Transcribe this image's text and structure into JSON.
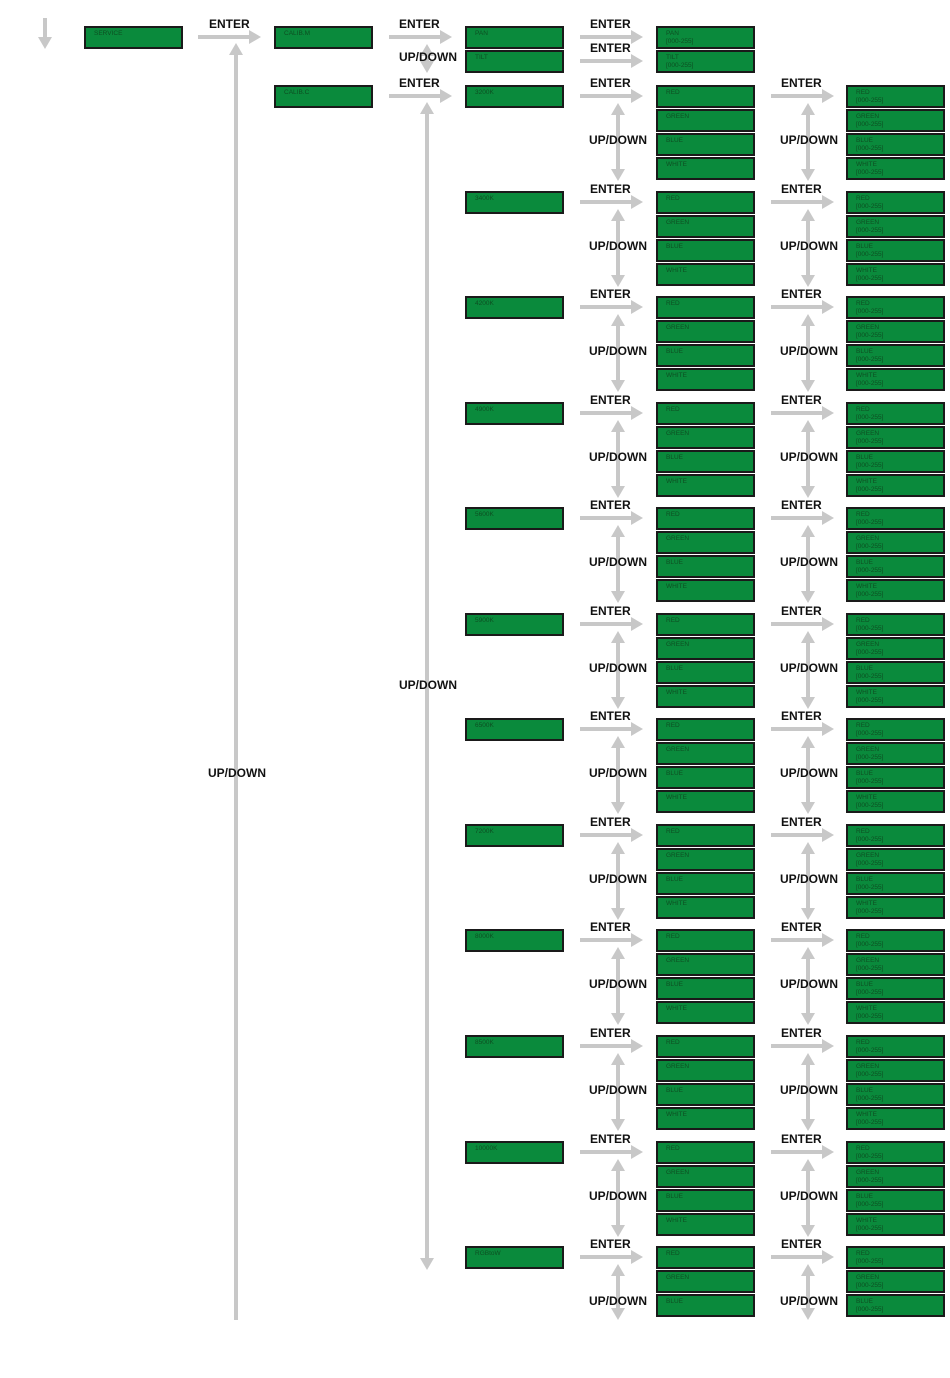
{
  "labels": {
    "enter": "ENTER",
    "updown": "UP/DOWN"
  },
  "colors": {
    "box_fill": "#0a8a3c",
    "box_border": "#1a1a1a",
    "box_text": "#0d4f22",
    "arrow": "#c8c8c8"
  },
  "menu": {
    "root": "SERVICE",
    "items": [
      {
        "label": "CALIB.M",
        "children": [
          {
            "label": "PAN",
            "value": "PAN\n[000-255]"
          },
          {
            "label": "TILT",
            "value": "TILT\n[000-255]"
          }
        ]
      },
      {
        "label": "CALIB.C",
        "temperatures": [
          {
            "label": "3200K",
            "channels": [
              "RED",
              "GREEN",
              "BLUE",
              "WHITE"
            ]
          },
          {
            "label": "3400K",
            "channels": [
              "RED",
              "GREEN",
              "BLUE",
              "WHITE"
            ]
          },
          {
            "label": "4200K",
            "channels": [
              "RED",
              "GREEN",
              "BLUE",
              "WHITE"
            ]
          },
          {
            "label": "4900K",
            "channels": [
              "RED",
              "GREEN",
              "BLUE",
              "WHITE"
            ]
          },
          {
            "label": "5600K",
            "channels": [
              "RED",
              "GREEN",
              "BLUE",
              "WHITE"
            ]
          },
          {
            "label": "5900K",
            "channels": [
              "RED",
              "GREEN",
              "BLUE",
              "WHITE"
            ]
          },
          {
            "label": "6500K",
            "channels": [
              "RED",
              "GREEN",
              "BLUE",
              "WHITE"
            ]
          },
          {
            "label": "7200K",
            "channels": [
              "RED",
              "GREEN",
              "BLUE",
              "WHITE"
            ]
          },
          {
            "label": "8000K",
            "channels": [
              "RED",
              "GREEN",
              "BLUE",
              "WHITE"
            ]
          },
          {
            "label": "8500K",
            "channels": [
              "RED",
              "GREEN",
              "BLUE",
              "WHITE"
            ]
          },
          {
            "label": "10000K",
            "channels": [
              "RED",
              "GREEN",
              "BLUE",
              "WHITE"
            ]
          },
          {
            "label": "RGBtoW",
            "channels": [
              "RED",
              "GREEN",
              "BLUE"
            ]
          }
        ],
        "value_suffix": "[000-255]"
      }
    ]
  }
}
